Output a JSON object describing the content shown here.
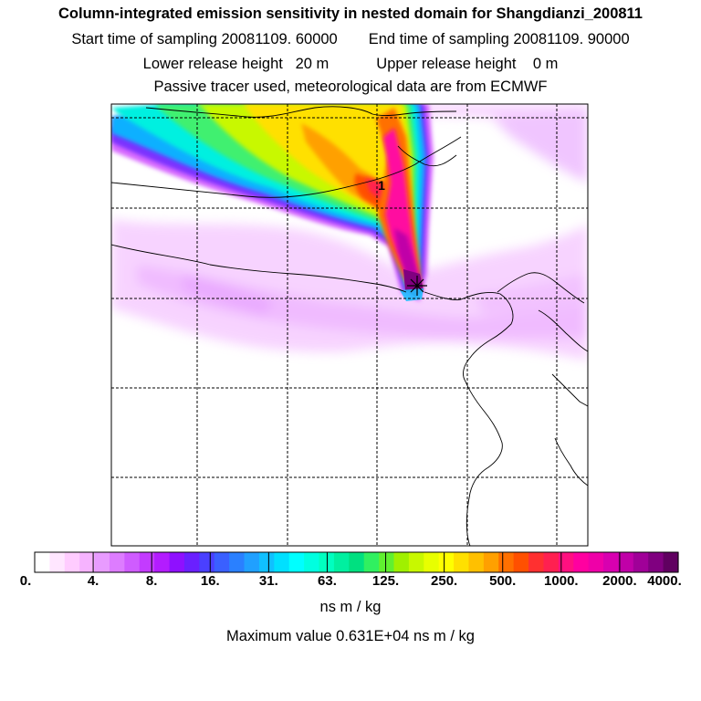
{
  "header": {
    "title": "Column-integrated emission sensitivity in nested domain for Shangdianzi_200811",
    "start_label": "Start time of sampling 20081109. 60000",
    "end_label": "End time of sampling 20081109. 90000",
    "lower_label": "Lower release height   20 m",
    "upper_label": "Upper release height    0 m",
    "tracer_line": "Passive tracer used, meteorological data are from ECMWF"
  },
  "map": {
    "release_marker_label": "1"
  },
  "colorbar": {
    "ticks": [
      "0.",
      "4.",
      "8.",
      "16.",
      "31.",
      "63.",
      "125.",
      "250.",
      "500.",
      "1000.",
      "2000.",
      "4000."
    ],
    "colors": [
      "#ffffff",
      "#ffe6ff",
      "#ffccff",
      "#f6b3ff",
      "#e89bff",
      "#dd7cff",
      "#cf5cff",
      "#c33bff",
      "#b31cff",
      "#8f10ff",
      "#6a20ff",
      "#4a40ff",
      "#3a60ff",
      "#2a80ff",
      "#20a0ff",
      "#10c0ff",
      "#00e0ff",
      "#00ffff",
      "#00ffe0",
      "#00ffc0",
      "#00f0a0",
      "#00e080",
      "#30f060",
      "#60f030",
      "#a0f000",
      "#c8f800",
      "#e8ff00",
      "#ffff00",
      "#ffe000",
      "#ffc000",
      "#ffa000",
      "#ff7000",
      "#ff5000",
      "#ff3030",
      "#ff2050",
      "#ff1080",
      "#ff00a0",
      "#ef00a8",
      "#d800b0",
      "#c000a8",
      "#a00098",
      "#800080",
      "#600060"
    ],
    "units": "ns m / kg"
  },
  "footer": {
    "max_value": "Maximum value  0.631E+04 ns m / kg"
  }
}
